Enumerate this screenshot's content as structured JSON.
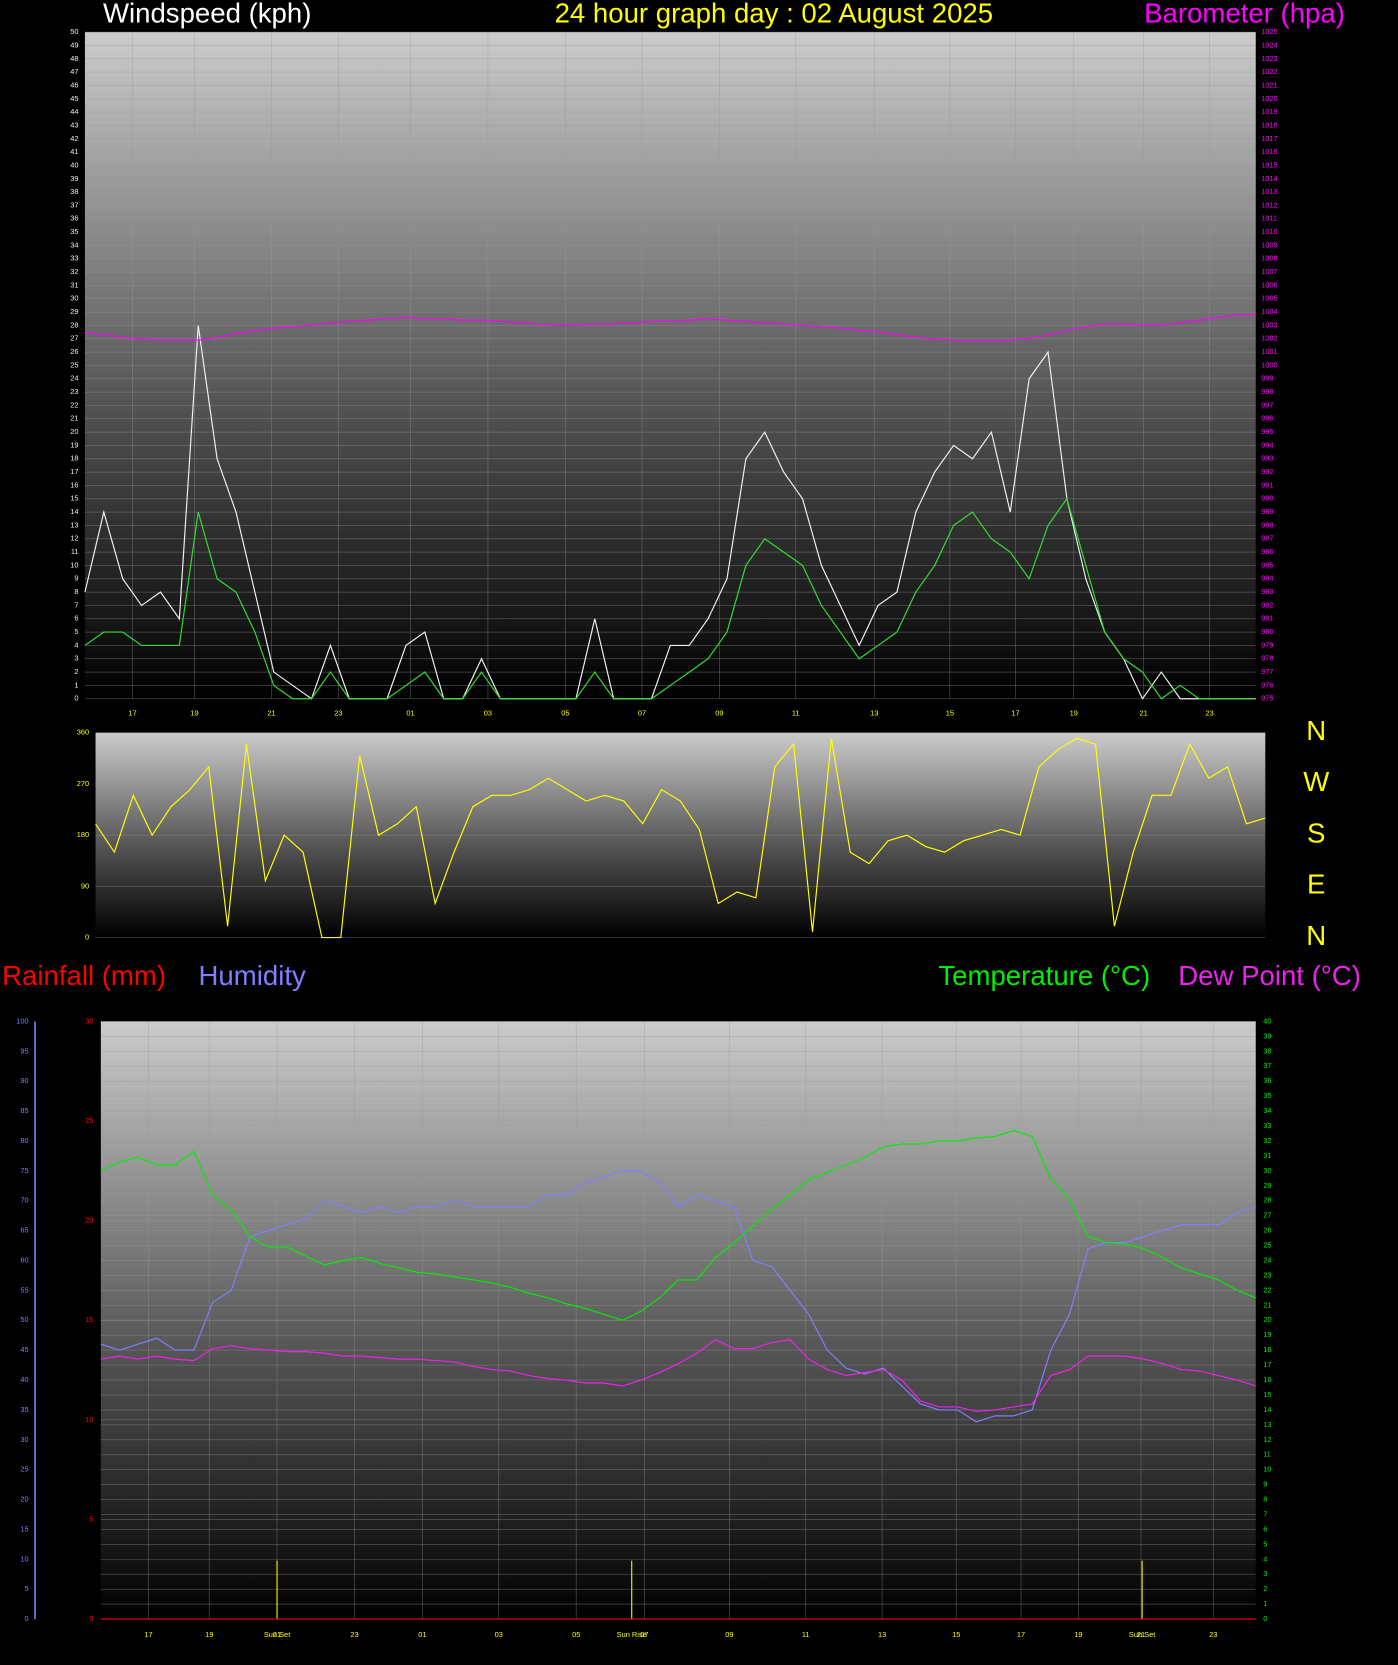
{
  "chart_data": [
    {
      "type": "line",
      "title": "24 hour graph day : 02 August 2025",
      "ylabel": "Windspeed (kph)",
      "y2label": "Barometer (hpa)",
      "xlim": [
        0,
        31
      ],
      "xticks": [
        {
          "value": 1.26,
          "label": "17"
        },
        {
          "value": 2.9,
          "label": "19"
        },
        {
          "value": 4.94,
          "label": "21"
        },
        {
          "value": 6.71,
          "label": "23"
        },
        {
          "value": 8.62,
          "label": "01"
        },
        {
          "value": 10.67,
          "label": "03"
        },
        {
          "value": 12.72,
          "label": "05"
        },
        {
          "value": 14.75,
          "label": "07"
        },
        {
          "value": 16.8,
          "label": "09"
        },
        {
          "value": 18.82,
          "label": "11"
        },
        {
          "value": 20.9,
          "label": "13"
        },
        {
          "value": 22.9,
          "label": "15"
        },
        {
          "value": 24.64,
          "label": "17"
        },
        {
          "value": 26.18,
          "label": "19"
        },
        {
          "value": 28.03,
          "label": "21"
        },
        {
          "value": 29.78,
          "label": "23"
        }
      ],
      "ylim": [
        0,
        50
      ],
      "yticks": [
        0,
        1,
        2,
        3,
        4,
        5,
        6,
        7,
        8,
        9,
        10,
        11,
        12,
        13,
        14,
        15,
        16,
        17,
        18,
        19,
        20,
        21,
        22,
        23,
        24,
        25,
        26,
        27,
        28,
        29,
        30,
        31,
        32,
        33,
        34,
        35,
        36,
        37,
        38,
        39,
        40,
        41,
        42,
        43,
        44,
        45,
        46,
        47,
        48,
        49,
        50
      ],
      "y2lim": [
        975,
        1025
      ],
      "y2ticks": [
        975,
        976,
        977,
        978,
        979,
        980,
        981,
        982,
        983,
        984,
        985,
        986,
        987,
        988,
        989,
        990,
        991,
        992,
        993,
        994,
        995,
        996,
        997,
        998,
        999,
        1000,
        1001,
        1002,
        1003,
        1004,
        1005,
        1006,
        1007,
        1008,
        1009,
        1010,
        1011,
        1012,
        1013,
        1014,
        1015,
        1016,
        1017,
        1018,
        1019,
        1020,
        1021,
        1022,
        1023,
        1024,
        1025
      ],
      "grid": true,
      "x": [
        0,
        0.5,
        1,
        1.5,
        2,
        2.5,
        3,
        3.5,
        4,
        4.5,
        5,
        5.5,
        6,
        6.5,
        7,
        7.5,
        8,
        8.5,
        9,
        9.5,
        10,
        10.5,
        11,
        11.5,
        12,
        12.5,
        13,
        13.5,
        14,
        14.5,
        15,
        15.5,
        16,
        16.5,
        17,
        17.5,
        18,
        18.5,
        19,
        19.5,
        20,
        20.5,
        21,
        21.5,
        22,
        22.5,
        23,
        23.5,
        24,
        24.5,
        25,
        25.5,
        26,
        26.5,
        27,
        27.5,
        28,
        28.5,
        29,
        29.5,
        30,
        30.5,
        31
      ],
      "series": [
        {
          "color": "#f0f0f0",
          "values": [
            8,
            14,
            9,
            7,
            8,
            6,
            28,
            18,
            14,
            8,
            2,
            1,
            0,
            4,
            0,
            0,
            0,
            4,
            5,
            0,
            0,
            3,
            0,
            0,
            0,
            0,
            0,
            6,
            0,
            0,
            0,
            4,
            4,
            6,
            9,
            18,
            20,
            17,
            15,
            10,
            7,
            4,
            7,
            8,
            14,
            17,
            19,
            18,
            20,
            14,
            24,
            26,
            15,
            9,
            5,
            3,
            0,
            2,
            0,
            0,
            0,
            0,
            0
          ]
        },
        {
          "color": "#33dd33",
          "values": [
            4,
            5,
            5,
            4,
            4,
            4,
            14,
            9,
            8,
            5,
            1,
            0,
            0,
            2,
            0,
            0,
            0,
            1,
            2,
            0,
            0,
            2,
            0,
            0,
            0,
            0,
            0,
            2,
            0,
            0,
            0,
            1,
            2,
            3,
            5,
            10,
            12,
            11,
            10,
            7,
            5,
            3,
            4,
            5,
            8,
            10,
            13,
            14,
            12,
            11,
            9,
            13,
            15,
            10,
            5,
            3,
            2,
            0,
            1,
            0,
            0,
            0,
            0
          ]
        },
        {
          "color": "#ff00ff",
          "axis": "y2",
          "values": [
            1002.5,
            1002.3,
            1002.1,
            1002.0,
            1001.9,
            1001.9,
            1001.9,
            1002.1,
            1002.4,
            1002.6,
            1002.8,
            1002.9,
            1003.0,
            1003.2,
            1003.3,
            1003.4,
            1003.5,
            1003.6,
            1003.5,
            1003.5,
            1003.4,
            1003.4,
            1003.3,
            1003.2,
            1003.1,
            1003.0,
            1003.0,
            1003.1,
            1003.1,
            1003.2,
            1003.3,
            1003.3,
            1003.4,
            1003.5,
            1003.4,
            1003.3,
            1003.2,
            1003.1,
            1003.0,
            1002.9,
            1002.8,
            1002.6,
            1002.5,
            1002.3,
            1002.1,
            1002.0,
            1001.9,
            1001.8,
            1001.8,
            1001.9,
            1002.0,
            1002.3,
            1002.6,
            1002.9,
            1003.1,
            1003.1,
            1003.0,
            1003.0,
            1003.2,
            1003.4,
            1003.6,
            1003.8,
            1003.8
          ]
        }
      ]
    },
    {
      "type": "line",
      "xlim": [
        0,
        31
      ],
      "ylim": [
        0,
        360
      ],
      "yticks": [
        0,
        90,
        180,
        270,
        360
      ],
      "grid": true,
      "compass_labels": [
        "N",
        "W",
        "S",
        "E",
        "N"
      ],
      "x": [
        0,
        0.5,
        1,
        1.5,
        2,
        2.5,
        3,
        3.5,
        4,
        4.5,
        5,
        5.5,
        6,
        6.5,
        7,
        7.5,
        8,
        8.5,
        9,
        9.5,
        10,
        10.5,
        11,
        11.5,
        12,
        12.5,
        13,
        13.5,
        14,
        14.5,
        15,
        15.5,
        16,
        16.5,
        17,
        17.5,
        18,
        18.5,
        19,
        19.5,
        20,
        20.5,
        21,
        21.5,
        22,
        22.5,
        23,
        23.5,
        24,
        24.5,
        25,
        25.5,
        26,
        26.5,
        27,
        27.5,
        28,
        28.5,
        29,
        29.5,
        30,
        30.5,
        31
      ],
      "series": [
        {
          "color": "#ffff00",
          "values": [
            200,
            150,
            250,
            180,
            230,
            260,
            300,
            20,
            340,
            100,
            180,
            150,
            0,
            0,
            320,
            180,
            200,
            230,
            60,
            150,
            230,
            250,
            250,
            260,
            280,
            260,
            240,
            250,
            240,
            200,
            260,
            240,
            190,
            60,
            80,
            70,
            300,
            340,
            10,
            350,
            150,
            130,
            170,
            180,
            160,
            150,
            170,
            180,
            190,
            180,
            300,
            330,
            350,
            340,
            20,
            150,
            250,
            250,
            340,
            280,
            300,
            200,
            210
          ]
        }
      ]
    },
    {
      "type": "line",
      "xlim": [
        0,
        31
      ],
      "xticks": [
        {
          "value": 1.28,
          "label": "17"
        },
        {
          "value": 2.91,
          "label": "19"
        },
        {
          "value": 4.73,
          "label": "21"
        },
        {
          "value": 6.81,
          "label": "23"
        },
        {
          "value": 8.63,
          "label": "01"
        },
        {
          "value": 10.68,
          "label": "03"
        },
        {
          "value": 12.76,
          "label": "05"
        },
        {
          "value": 14.59,
          "label": "07"
        },
        {
          "value": 16.87,
          "label": "09"
        },
        {
          "value": 18.92,
          "label": "11"
        },
        {
          "value": 20.97,
          "label": "13"
        },
        {
          "value": 22.96,
          "label": "15"
        },
        {
          "value": 24.7,
          "label": "17"
        },
        {
          "value": 26.24,
          "label": "19"
        },
        {
          "value": 27.92,
          "label": "21"
        },
        {
          "value": 29.86,
          "label": "23"
        }
      ],
      "ylim": [
        0,
        30
      ],
      "yticks": [
        0,
        5,
        10,
        15,
        20,
        25,
        30
      ],
      "y2lim": [
        0,
        40
      ],
      "y2ticks": [
        0,
        1,
        2,
        3,
        4,
        5,
        6,
        7,
        8,
        9,
        10,
        11,
        12,
        13,
        14,
        15,
        16,
        17,
        18,
        19,
        20,
        21,
        22,
        23,
        24,
        25,
        26,
        27,
        28,
        29,
        30,
        31,
        32,
        33,
        34,
        35,
        36,
        37,
        38,
        39,
        40
      ],
      "y3lim": [
        0,
        100
      ],
      "y3ticks": [
        0,
        5,
        10,
        15,
        20,
        25,
        30,
        35,
        40,
        45,
        50,
        55,
        60,
        65,
        70,
        75,
        80,
        85,
        90,
        95,
        100
      ],
      "grid": true,
      "annotations": [
        {
          "label": "Sun Set",
          "x": 4.73
        },
        {
          "label": "Sun Rise",
          "x": 14.25
        },
        {
          "label": "Sun Set",
          "x": 27.95
        }
      ],
      "x": [
        0,
        0.5,
        1,
        1.5,
        2,
        2.5,
        3,
        3.5,
        4,
        4.5,
        5,
        5.5,
        6,
        6.5,
        7,
        7.5,
        8,
        8.5,
        9,
        9.5,
        10,
        10.5,
        11,
        11.5,
        12,
        12.5,
        13,
        13.5,
        14,
        14.5,
        15,
        15.5,
        16,
        16.5,
        17,
        17.5,
        18,
        18.5,
        19,
        19.5,
        20,
        20.5,
        21,
        21.5,
        22,
        22.5,
        23,
        23.5,
        24,
        24.5,
        25,
        25.5,
        26,
        26.5,
        27,
        27.5,
        28,
        28.5,
        29,
        29.5,
        30,
        30.5,
        31
      ],
      "series": [
        {
          "name": "Rainfall (mm)",
          "color": "#ff0000",
          "values": [
            0,
            0,
            0,
            0,
            0,
            0,
            0,
            0,
            0,
            0,
            0,
            0,
            0,
            0,
            0,
            0,
            0,
            0,
            0,
            0,
            0,
            0,
            0,
            0,
            0,
            0,
            0,
            0,
            0,
            0,
            0,
            0,
            0,
            0,
            0,
            0,
            0,
            0,
            0,
            0,
            0,
            0,
            0,
            0,
            0,
            0,
            0,
            0,
            0,
            0,
            0,
            0,
            0,
            0,
            0,
            0,
            0,
            0,
            0,
            0,
            0,
            0,
            0
          ]
        },
        {
          "name": "Humidity",
          "color": "#7f7fff",
          "axis": "y3",
          "values": [
            46,
            45,
            46,
            47,
            45,
            45,
            53,
            55,
            64,
            65,
            66,
            67,
            70,
            69,
            68,
            69,
            68,
            69,
            69,
            70,
            69,
            69,
            69,
            69,
            71,
            71,
            73,
            74,
            75,
            75,
            73,
            69,
            71,
            70,
            69,
            60,
            59,
            55,
            51,
            45,
            42,
            41,
            42,
            39,
            36,
            35,
            35,
            33,
            34,
            34,
            35,
            45,
            51,
            62,
            63,
            63,
            64,
            65,
            66,
            66,
            66,
            68,
            69
          ]
        },
        {
          "name": "Temperature (°C)",
          "color": "#00ee00",
          "axis": "y2",
          "values": [
            30.0,
            30.6,
            30.9,
            30.4,
            30.4,
            31.3,
            28.4,
            27.4,
            25.6,
            24.9,
            24.9,
            24.3,
            23.7,
            24.0,
            24.2,
            23.8,
            23.5,
            23.2,
            23.1,
            22.9,
            22.7,
            22.5,
            22.2,
            21.8,
            21.5,
            21.1,
            20.8,
            20.4,
            20.0,
            20.6,
            21.5,
            22.7,
            22.7,
            24.2,
            25.2,
            26.3,
            27.4,
            28.4,
            29.4,
            29.9,
            30.4,
            30.9,
            31.6,
            31.8,
            31.8,
            32.0,
            32.0,
            32.2,
            32.3,
            32.7,
            32.3,
            29.5,
            28.1,
            25.6,
            25.2,
            25.1,
            24.8,
            24.2,
            23.5,
            23.1,
            22.7,
            22.0,
            21.5
          ]
        },
        {
          "name": "Dew Point (°C)",
          "color": "#ee22ee",
          "axis": "y2",
          "values": [
            17.4,
            17.6,
            17.4,
            17.6,
            17.4,
            17.3,
            18.1,
            18.3,
            18.1,
            18.0,
            17.9,
            17.9,
            17.8,
            17.6,
            17.6,
            17.5,
            17.4,
            17.4,
            17.3,
            17.2,
            16.9,
            16.7,
            16.6,
            16.3,
            16.1,
            16.0,
            15.8,
            15.8,
            15.6,
            16.0,
            16.5,
            17.1,
            17.8,
            18.7,
            18.1,
            18.1,
            18.5,
            18.7,
            17.4,
            16.7,
            16.3,
            16.5,
            16.7,
            16.0,
            14.6,
            14.2,
            14.2,
            13.9,
            14.0,
            14.2,
            14.4,
            16.3,
            16.7,
            17.6,
            17.6,
            17.6,
            17.4,
            17.1,
            16.7,
            16.6,
            16.3,
            16.0,
            15.6
          ]
        }
      ]
    }
  ]
}
